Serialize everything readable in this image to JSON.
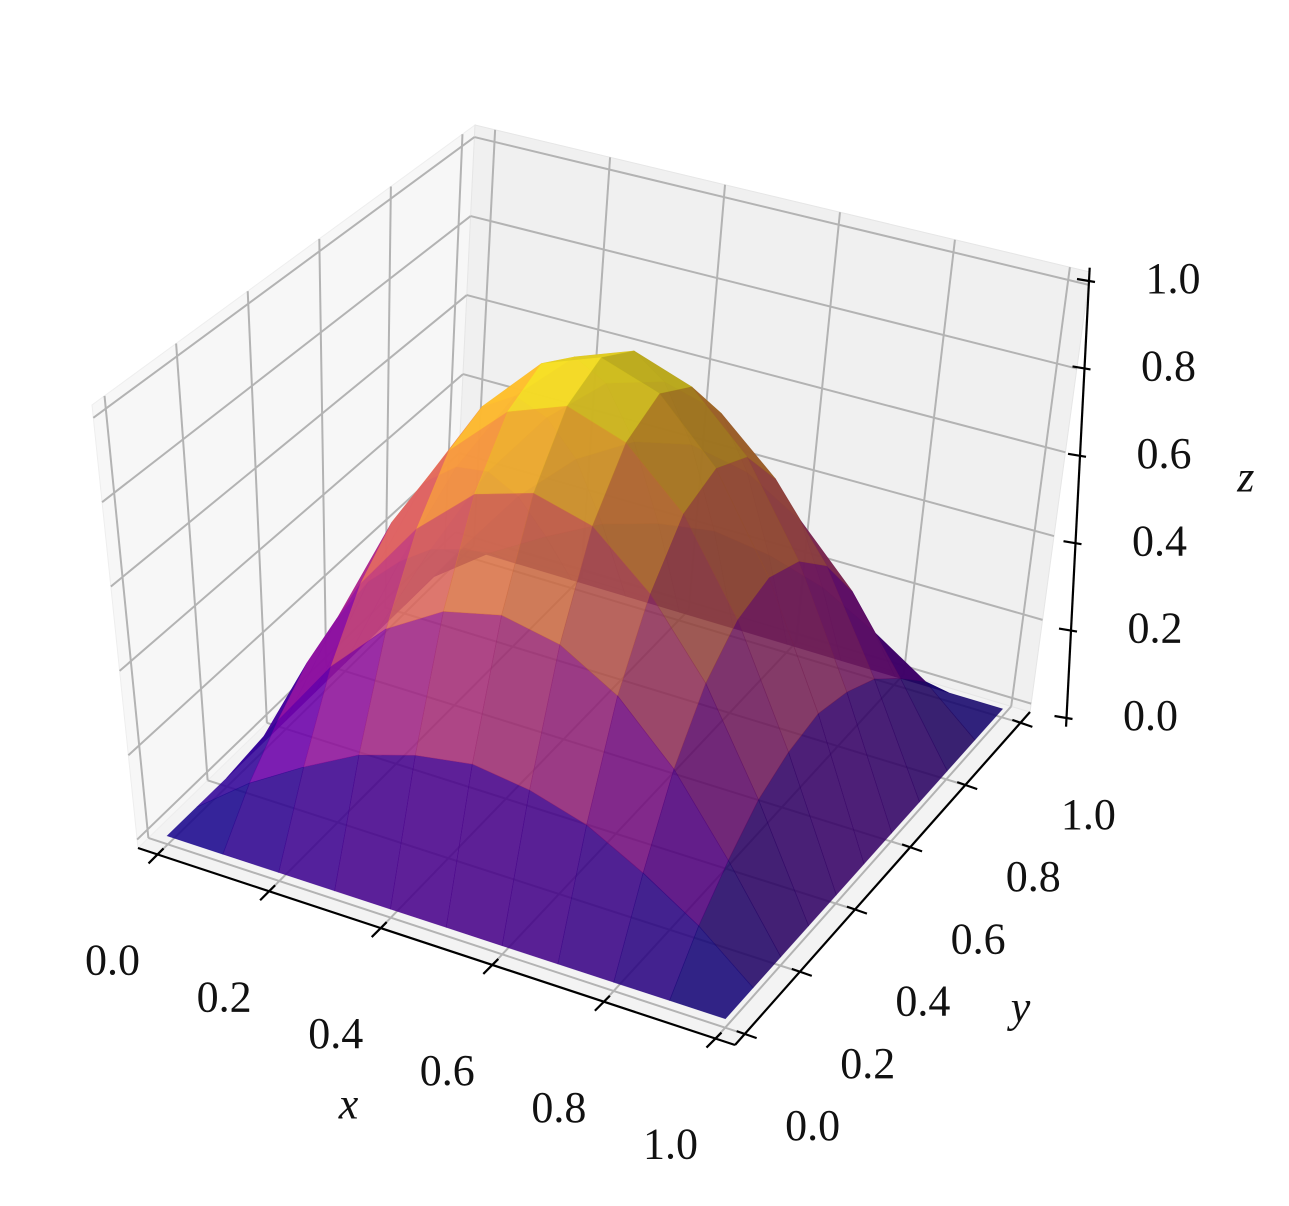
{
  "chart_data": {
    "type": "surface3d",
    "colormap": "plasma",
    "x": [
      0,
      0.1,
      0.2,
      0.3,
      0.4,
      0.5,
      0.6,
      0.7,
      0.8,
      0.9,
      1
    ],
    "y": [
      0,
      0.1,
      0.2,
      0.3,
      0.4,
      0.5,
      0.6,
      0.7,
      0.8,
      0.9,
      1
    ],
    "z": [
      [
        0,
        0,
        0,
        0,
        0,
        0,
        0,
        0,
        0,
        0,
        0
      ],
      [
        0,
        0.1,
        0.18,
        0.25,
        0.29,
        0.31,
        0.29,
        0.25,
        0.18,
        0.1,
        0
      ],
      [
        0,
        0.18,
        0.35,
        0.48,
        0.56,
        0.59,
        0.56,
        0.48,
        0.35,
        0.18,
        0
      ],
      [
        0,
        0.25,
        0.48,
        0.65,
        0.77,
        0.81,
        0.77,
        0.65,
        0.48,
        0.25,
        0
      ],
      [
        0,
        0.29,
        0.56,
        0.77,
        0.9,
        0.95,
        0.9,
        0.77,
        0.56,
        0.29,
        0
      ],
      [
        0,
        0.31,
        0.59,
        0.81,
        0.95,
        1.0,
        0.95,
        0.81,
        0.59,
        0.31,
        0
      ],
      [
        0,
        0.29,
        0.56,
        0.77,
        0.9,
        0.95,
        0.9,
        0.77,
        0.56,
        0.29,
        0
      ],
      [
        0,
        0.25,
        0.48,
        0.65,
        0.77,
        0.81,
        0.77,
        0.65,
        0.48,
        0.25,
        0
      ],
      [
        0,
        0.18,
        0.35,
        0.48,
        0.56,
        0.59,
        0.56,
        0.48,
        0.35,
        0.18,
        0
      ],
      [
        0,
        0.1,
        0.18,
        0.25,
        0.29,
        0.31,
        0.29,
        0.25,
        0.18,
        0.1,
        0
      ],
      [
        0,
        0,
        0,
        0,
        0,
        0,
        0,
        0,
        0,
        0,
        0
      ]
    ],
    "xlabel": "x",
    "ylabel": "y",
    "zlabel": "z",
    "xlim": [
      0,
      1
    ],
    "ylim": [
      0,
      1
    ],
    "zlim": [
      0,
      1
    ],
    "xticks": [
      {
        "value": 0,
        "label": "0.0"
      },
      {
        "value": 0.2,
        "label": "0.2"
      },
      {
        "value": 0.4,
        "label": "0.4"
      },
      {
        "value": 0.6,
        "label": "0.6"
      },
      {
        "value": 0.8,
        "label": "0.8"
      },
      {
        "value": 1,
        "label": "1.0"
      }
    ],
    "yticks": [
      {
        "value": 0,
        "label": "0.0"
      },
      {
        "value": 0.2,
        "label": "0.2"
      },
      {
        "value": 0.4,
        "label": "0.4"
      },
      {
        "value": 0.6,
        "label": "0.6"
      },
      {
        "value": 0.8,
        "label": "0.8"
      },
      {
        "value": 1,
        "label": "1.0"
      }
    ],
    "zticks": [
      {
        "value": 0,
        "label": "0.0"
      },
      {
        "value": 0.2,
        "label": "0.2"
      },
      {
        "value": 0.4,
        "label": "0.4"
      },
      {
        "value": 0.6,
        "label": "0.6"
      },
      {
        "value": 0.8,
        "label": "0.8"
      },
      {
        "value": 1,
        "label": "1.0"
      }
    ],
    "grid": true
  }
}
